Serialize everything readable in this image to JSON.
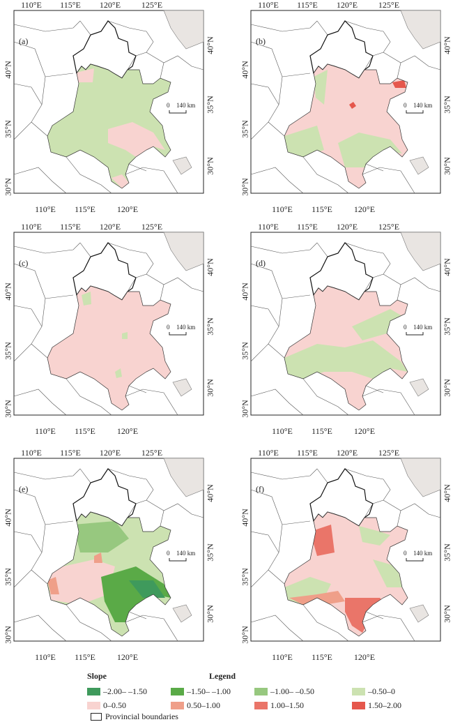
{
  "panels": [
    {
      "label": "(a)"
    },
    {
      "label": "(b)"
    },
    {
      "label": "(c)"
    },
    {
      "label": "(d)"
    },
    {
      "label": "(e)"
    },
    {
      "label": "(f)"
    }
  ],
  "axis": {
    "lon_ticks": [
      "110°E",
      "115°E",
      "120°E",
      "125°E"
    ],
    "lon_ticks_bottom": [
      "110°E",
      "115°E",
      "120°E"
    ],
    "lat_ticks_left": [
      "40°N",
      "35°N",
      "30°N"
    ],
    "lat_ticks_right": [
      "40°N",
      "35°N",
      "30°N"
    ]
  },
  "scale_bar": {
    "start": "0",
    "end": "140 km"
  },
  "legend": {
    "slope_title": "Slope",
    "legend_title": "Legend",
    "items": [
      {
        "label": "–2.00– –1.50",
        "color": "#3f9a5c"
      },
      {
        "label": "–1.50– –1.00",
        "color": "#5aaa47"
      },
      {
        "label": "–1.00– –0.50",
        "color": "#97c87f"
      },
      {
        "label": "–0.50–0",
        "color": "#cce2b1"
      },
      {
        "label": "0–0.50",
        "color": "#f8d3d0"
      },
      {
        "label": "0.50–1.00",
        "color": "#ef9f89"
      },
      {
        "label": "1.00–1.50",
        "color": "#ea7569"
      },
      {
        "label": "1.50–2.00",
        "color": "#e5574c"
      }
    ],
    "boundary_label": "Provincial boundaries"
  },
  "colors": {
    "sea_land_grey": "#e9e5e2",
    "boundary": "#555555"
  }
}
